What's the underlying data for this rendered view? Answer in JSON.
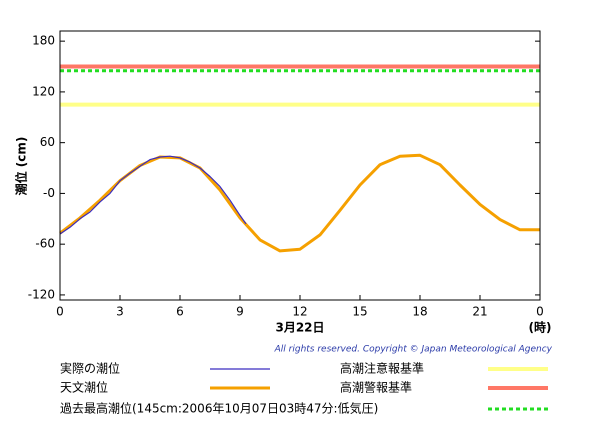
{
  "chart_data": {
    "type": "line",
    "ylabel": "潮位 (cm)",
    "xlabel": "3月22日",
    "xunit": "(時)",
    "copyright": "All rights reserved. Copyright © Japan Meteorological Agency",
    "xlim": [
      0,
      24
    ],
    "xticks": [
      0,
      3,
      6,
      9,
      12,
      15,
      18,
      21,
      {
        "value": 24,
        "label": "0"
      }
    ],
    "ylim": [
      -126,
      192
    ],
    "yticks": [
      180,
      120,
      60,
      {
        "value": 0,
        "label": "-0"
      },
      -60,
      -120
    ],
    "series": [
      {
        "name": "実際の潮位",
        "color": "#3a2cc0",
        "width": 1.2,
        "x": [
          0,
          0.5,
          1,
          1.5,
          2,
          2.5,
          3,
          3.5,
          4,
          4.5,
          5,
          5.5,
          6,
          6.5,
          7,
          7.5,
          8,
          8.5,
          9,
          9.3
        ],
        "values": [
          -48,
          -40,
          -30,
          -22,
          -10,
          0,
          15,
          24,
          32,
          40,
          43,
          44,
          42,
          37,
          30,
          20,
          8,
          -8,
          -26,
          -36
        ]
      },
      {
        "name": "天文潮位",
        "color": "#f5a000",
        "width": 3,
        "x": [
          0,
          1,
          2,
          3,
          4,
          5,
          6,
          7,
          8,
          9,
          10,
          11,
          12,
          13,
          14,
          15,
          16,
          17,
          18,
          19,
          20,
          21,
          22,
          23,
          24
        ],
        "values": [
          -47,
          -29,
          -8,
          15,
          33,
          43,
          42,
          30,
          4,
          -29,
          -55,
          -68,
          -66,
          -49,
          -20,
          10,
          34,
          44,
          45,
          34,
          10,
          -13,
          -31,
          -43,
          -43
        ]
      }
    ],
    "reference_lines": [
      {
        "name": "高潮注意報基準",
        "value": 105,
        "color": "#ffff88",
        "dash": false
      },
      {
        "name": "高潮警報基準",
        "value": 150,
        "color": "#ff7766",
        "dash": false
      },
      {
        "name": "過去最高潮位(145cm:2006年10月07日03時47分:低気圧)",
        "value": 145,
        "color": "#22dd22",
        "dash": true
      }
    ]
  }
}
